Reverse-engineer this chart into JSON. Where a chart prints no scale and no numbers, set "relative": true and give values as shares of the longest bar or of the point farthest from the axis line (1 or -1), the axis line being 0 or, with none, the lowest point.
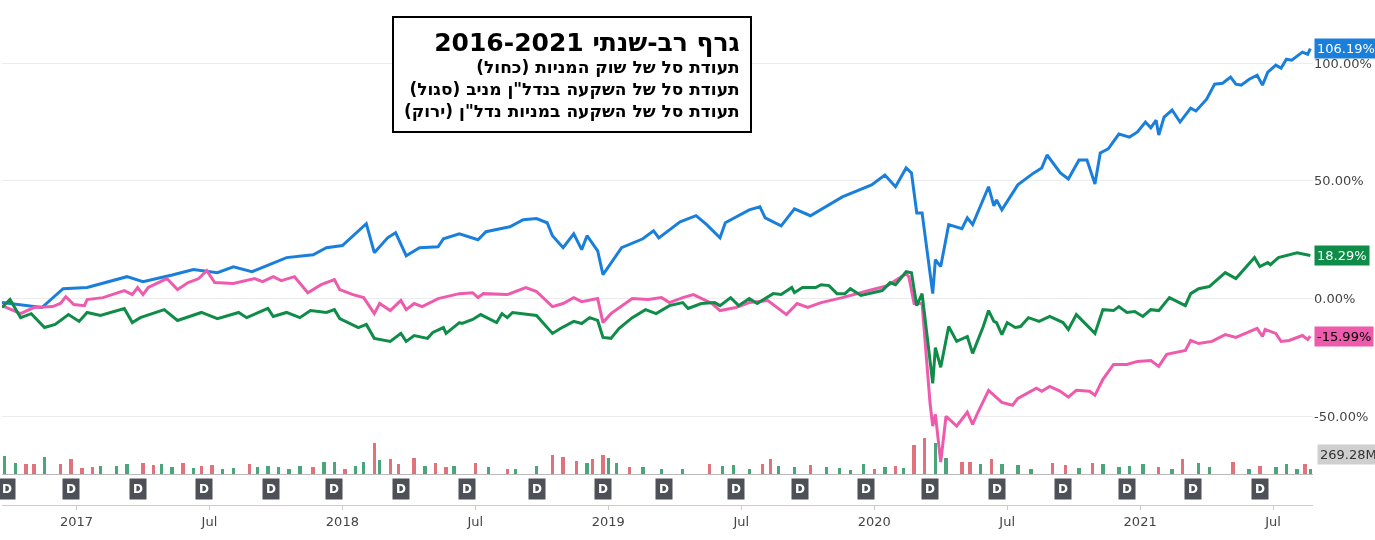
{
  "chart_data": [
    {
      "type": "line",
      "title": "גרף רב-שנתי 2016-2021",
      "subtitle": "תעודת סל של שוק המניות (כחול)\nתעודת סל של השקעה בנדל\"ן מניב (סגול)\nתעודת סל של השקעה במניות נדל\"ן (ירוק)",
      "xlim": [
        2016.72,
        2021.65
      ],
      "ylim": [
        -87.7,
        126
      ],
      "yticks": [
        {
          "value": -50,
          "label": "-50.00%"
        },
        {
          "value": 0,
          "label": "0.00%"
        },
        {
          "value": 50,
          "label": "50.00%"
        },
        {
          "value": 100,
          "label": "100.00%"
        }
      ],
      "grid": "y",
      "tick_labels": "y",
      "series": [
        {
          "color": "#1a7fdb",
          "x": [
            2016.72,
            2016.87,
            2016.95,
            2017.04,
            2017.19,
            2017.25,
            2017.36,
            2017.44,
            2017.53,
            2017.59,
            2017.66,
            2017.79,
            2017.89,
            2017.94,
            2018.0,
            2018.09,
            2018.12,
            2018.17,
            2018.2,
            2018.24,
            2018.29,
            2018.36,
            2018.38,
            2018.44,
            2018.51,
            2018.54,
            2018.63,
            2018.68,
            2018.73,
            2018.77,
            2018.79,
            2018.83,
            2018.87,
            2018.9,
            2018.92,
            2018.96,
            2018.98,
            2019.05,
            2019.13,
            2019.17,
            2019.19,
            2019.27,
            2019.33,
            2019.37,
            2019.42,
            2019.44,
            2019.53,
            2019.57,
            2019.59,
            2019.65,
            2019.7,
            2019.76,
            2019.88,
            2019.99,
            2020.04,
            2020.08,
            2020.12,
            2020.14,
            2020.16,
            2020.18,
            2020.22,
            2020.23,
            2020.25,
            2020.28,
            2020.33,
            2020.35,
            2020.37,
            2020.43,
            2020.45,
            2020.46,
            2020.48,
            2020.54,
            2020.6,
            2020.63,
            2020.65,
            2020.7,
            2020.73,
            2020.77,
            2020.8,
            2020.83,
            2020.85,
            2020.88,
            2020.92,
            2020.96,
            2020.99,
            2021.02,
            2021.04,
            2021.06,
            2021.07,
            2021.09,
            2021.12,
            2021.15,
            2021.19,
            2021.21,
            2021.25,
            2021.28,
            2021.31,
            2021.34,
            2021.36,
            2021.38,
            2021.41,
            2021.44,
            2021.46,
            2021.48,
            2021.51,
            2021.53,
            2021.55,
            2021.57,
            2021.61,
            2021.63,
            2021.64
          ],
          "values": [
            -1.7,
            -3.8,
            4.2,
            4.7,
            9.3,
            7.2,
            10,
            12.3,
            11,
            13.5,
            11.4,
            17.4,
            18.6,
            21.6,
            22.5,
            31.8,
            19.5,
            25.8,
            28,
            18.2,
            21.6,
            22,
            25.4,
            27.5,
            25,
            28.4,
            30.5,
            33.5,
            34,
            32.2,
            26.7,
            21.6,
            27.5,
            20.8,
            26.7,
            20.3,
            10.2,
            21.6,
            25.4,
            28.8,
            25.8,
            32.6,
            35.2,
            31.4,
            25.8,
            32.2,
            37.7,
            39,
            34.3,
            30.9,
            38.1,
            35.2,
            43.2,
            48.3,
            52.5,
            47.5,
            55.5,
            53.4,
            36.4,
            36.4,
            2.1,
            16.5,
            13.6,
            31.4,
            29.7,
            34.3,
            31.4,
            47.5,
            39.4,
            41.9,
            37.7,
            48.3,
            53.4,
            55.5,
            61,
            53.4,
            50.8,
            58.9,
            58.9,
            48.7,
            61.9,
            63.6,
            69.9,
            68.6,
            70.8,
            75,
            72.5,
            75.8,
            69.5,
            77.1,
            80.1,
            75,
            80.9,
            79.7,
            84.7,
            91.1,
            91.5,
            94.1,
            91.1,
            90.7,
            93.2,
            94.9,
            90.7,
            96.2,
            99.2,
            97.9,
            101.7,
            101.3,
            104.7,
            103.8,
            106.19
          ]
        },
        {
          "color": "#ee5bad",
          "x": [
            2016.72,
            2016.79,
            2016.84,
            2016.91,
            2016.94,
            2016.96,
            2016.99,
            2017.03,
            2017.04,
            2017.1,
            2017.18,
            2017.21,
            2017.23,
            2017.25,
            2017.27,
            2017.34,
            2017.38,
            2017.42,
            2017.46,
            2017.49,
            2017.52,
            2017.59,
            2017.67,
            2017.7,
            2017.74,
            2017.77,
            2017.82,
            2017.87,
            2017.92,
            2017.97,
            2017.99,
            2018.04,
            2018.08,
            2018.12,
            2018.14,
            2018.18,
            2018.22,
            2018.24,
            2018.27,
            2018.3,
            2018.36,
            2018.44,
            2018.49,
            2018.51,
            2018.53,
            2018.62,
            2018.69,
            2018.73,
            2018.79,
            2018.83,
            2018.87,
            2018.9,
            2018.96,
            2018.98,
            2019.01,
            2019.09,
            2019.15,
            2019.2,
            2019.23,
            2019.28,
            2019.32,
            2019.39,
            2019.42,
            2019.48,
            2019.53,
            2019.6,
            2019.67,
            2019.71,
            2019.75,
            2019.8,
            2019.88,
            2019.98,
            2020.05,
            2020.12,
            2020.13,
            2020.15,
            2020.18,
            2020.21,
            2020.22,
            2020.23,
            2020.25,
            2020.27,
            2020.31,
            2020.35,
            2020.37,
            2020.39,
            2020.43,
            2020.48,
            2020.52,
            2020.54,
            2020.61,
            2020.63,
            2020.66,
            2020.7,
            2020.73,
            2020.76,
            2020.81,
            2020.83,
            2020.86,
            2020.9,
            2020.95,
            2020.99,
            2021.04,
            2021.07,
            2021.1,
            2021.17,
            2021.19,
            2021.22,
            2021.27,
            2021.32,
            2021.36,
            2021.44,
            2021.46,
            2021.47,
            2021.51,
            2021.53,
            2021.56,
            2021.61,
            2021.63,
            2021.64
          ],
          "values": [
            -3,
            -6.4,
            -3.8,
            -3.4,
            -2.1,
            0.8,
            -2.5,
            -3,
            -0.4,
            0.4,
            3.4,
            1.7,
            4.7,
            1.7,
            4.7,
            8.5,
            3.8,
            6.8,
            8.5,
            11.9,
            6.8,
            6.4,
            8.5,
            7.2,
            9.3,
            7.6,
            9.3,
            2.5,
            5.9,
            8.1,
            3.8,
            1.7,
            0.4,
            -6.4,
            -2.1,
            -5.1,
            -0.8,
            -4.7,
            -2.1,
            -3.4,
            0,
            2.1,
            2.5,
            0.4,
            2.1,
            1.7,
            4.7,
            3,
            -3.4,
            -2.1,
            0.4,
            -1.3,
            0,
            -10.2,
            -6.4,
            0,
            -0.4,
            0.4,
            -1.7,
            0.4,
            1.7,
            -2.1,
            -5.1,
            -3.8,
            -1.7,
            -0.8,
            -6.8,
            -2.1,
            -3.8,
            -1.7,
            0.4,
            3.4,
            5.5,
            10.6,
            9.3,
            -2.1,
            -2.1,
            -44.5,
            -54.2,
            -49.2,
            -69.5,
            -50,
            -54.2,
            -48.3,
            -53.4,
            -48.3,
            -39,
            -44.1,
            -45.3,
            -42.4,
            -38.1,
            -39.4,
            -37.3,
            -39.4,
            -41.9,
            -39,
            -39.4,
            -41.1,
            -34.3,
            -28,
            -28,
            -26.7,
            -26.3,
            -28.8,
            -23.7,
            -22,
            -17.8,
            -19.1,
            -18.2,
            -15.3,
            -16.5,
            -12.7,
            -16.1,
            -13.1,
            -14.8,
            -18.2,
            -17.8,
            -15.7,
            -17.4,
            -15.99
          ]
        },
        {
          "color": "#0e8c48",
          "x": [
            2016.72,
            2016.75,
            2016.79,
            2016.83,
            2016.88,
            2016.92,
            2016.97,
            2017.01,
            2017.04,
            2017.09,
            2017.18,
            2017.21,
            2017.24,
            2017.33,
            2017.38,
            2017.47,
            2017.53,
            2017.61,
            2017.64,
            2017.72,
            2017.74,
            2017.79,
            2017.84,
            2017.88,
            2017.94,
            2017.97,
            2017.99,
            2018.06,
            2018.09,
            2018.12,
            2018.18,
            2018.22,
            2018.24,
            2018.27,
            2018.32,
            2018.34,
            2018.38,
            2018.39,
            2018.44,
            2018.45,
            2018.49,
            2018.52,
            2018.58,
            2018.6,
            2018.62,
            2018.64,
            2018.73,
            2018.79,
            2018.82,
            2018.87,
            2018.9,
            2018.93,
            2018.96,
            2018.98,
            2019.01,
            2019.04,
            2019.09,
            2019.14,
            2019.18,
            2019.23,
            2019.28,
            2019.3,
            2019.35,
            2019.4,
            2019.42,
            2019.46,
            2019.49,
            2019.53,
            2019.56,
            2019.62,
            2019.65,
            2019.69,
            2019.7,
            2019.73,
            2019.78,
            2019.8,
            2019.83,
            2019.86,
            2019.89,
            2019.91,
            2019.95,
            2020.03,
            2020.06,
            2020.08,
            2020.12,
            2020.14,
            2020.16,
            2020.18,
            2020.22,
            2020.23,
            2020.25,
            2020.28,
            2020.31,
            2020.35,
            2020.37,
            2020.41,
            2020.43,
            2020.45,
            2020.46,
            2020.48,
            2020.5,
            2020.53,
            2020.55,
            2020.58,
            2020.62,
            2020.66,
            2020.71,
            2020.73,
            2020.76,
            2020.79,
            2020.83,
            2020.86,
            2020.9,
            2020.92,
            2020.95,
            2020.98,
            2021.01,
            2021.04,
            2021.07,
            2021.11,
            2021.17,
            2021.19,
            2021.22,
            2021.26,
            2021.32,
            2021.36,
            2021.43,
            2021.45,
            2021.48,
            2021.49,
            2021.52,
            2021.59,
            2021.64
          ],
          "values": [
            -3.8,
            -0.4,
            -8.1,
            -6.4,
            -12.3,
            -11,
            -6.8,
            -9.7,
            -5.9,
            -7.2,
            -4.2,
            -10.2,
            -8.1,
            -4.7,
            -9.3,
            -5.9,
            -8.5,
            -5.9,
            -8.1,
            -4.2,
            -7.6,
            -5.9,
            -8.1,
            -5.1,
            -5.9,
            -4.7,
            -8.5,
            -12.3,
            -11,
            -16.9,
            -18.2,
            -14.8,
            -18.2,
            -15.7,
            -16.9,
            -14.4,
            -12.3,
            -14.8,
            -10.2,
            -10.6,
            -8.9,
            -6.8,
            -10.2,
            -6.4,
            -8.1,
            -5.9,
            -7.2,
            -14.8,
            -12.7,
            -9.7,
            -10.6,
            -8.1,
            -9.3,
            -16.5,
            -16.9,
            -12.7,
            -8.1,
            -4.7,
            -6.4,
            -3,
            -1.7,
            -4.2,
            -2.1,
            -1.7,
            -3,
            0.4,
            -3,
            0,
            -2.1,
            2.1,
            1.7,
            4.7,
            2.5,
            4.7,
            4.7,
            5.9,
            5.5,
            2.1,
            2.1,
            4.2,
            1.3,
            3.4,
            6.8,
            5.9,
            11.4,
            11,
            -3,
            2.1,
            -36,
            -20.8,
            -29.2,
            -11.9,
            -18.2,
            -16.1,
            -23.3,
            -11.9,
            -5.1,
            -9.7,
            -10.2,
            -15.3,
            -10.2,
            -12.3,
            -11.9,
            -8.1,
            -9.7,
            -7.6,
            -10.2,
            -13.1,
            -6.8,
            -10.2,
            -14.8,
            -4.7,
            -5.1,
            -3.4,
            -5.9,
            -5.5,
            -7.6,
            -4.7,
            -5.1,
            0.4,
            -3,
            2.1,
            4.2,
            5.1,
            11,
            8.5,
            17.4,
            13.6,
            15.3,
            14.4,
            17.4,
            19.5,
            18.29
          ]
        }
      ],
      "annotations": [
        {
          "text": "106.19%",
          "x": 2021.64,
          "y": 106.19
        },
        {
          "text": "-15.99%",
          "x": 2021.64,
          "y": -15.99
        },
        {
          "text": "18.29%",
          "x": 2021.64,
          "y": 18.29
        },
        {
          "text": "D",
          "x": 2016.74
        },
        {
          "text": "D",
          "x": 2016.98
        },
        {
          "text": "D",
          "x": 2017.23
        },
        {
          "text": "D",
          "x": 2017.48
        },
        {
          "text": "D",
          "x": 2017.73
        },
        {
          "text": "D",
          "x": 2017.97
        },
        {
          "text": "D",
          "x": 2018.22
        },
        {
          "text": "D",
          "x": 2018.47
        },
        {
          "text": "D",
          "x": 2018.73
        },
        {
          "text": "D",
          "x": 2018.98
        },
        {
          "text": "D",
          "x": 2019.21
        },
        {
          "text": "D",
          "x": 2019.48
        },
        {
          "text": "D",
          "x": 2019.72
        },
        {
          "text": "D",
          "x": 2019.97
        },
        {
          "text": "D",
          "x": 2020.21
        },
        {
          "text": "D",
          "x": 2020.46
        },
        {
          "text": "D",
          "x": 2020.71
        },
        {
          "text": "D",
          "x": 2020.95
        },
        {
          "text": "D",
          "x": 2021.2
        },
        {
          "text": "D",
          "x": 2021.45
        }
      ]
    },
    {
      "type": "bar",
      "relative": true,
      "tick_labels": "x",
      "xlim": [
        2016.72,
        2021.65
      ],
      "xticks": [
        2017,
        {
          "value": 2017.5,
          "label": "Jul"
        },
        2018,
        {
          "value": 2018.5,
          "label": "Jul"
        },
        2019,
        {
          "value": 2019.5,
          "label": "Jul"
        },
        2020,
        {
          "value": 2020.5,
          "label": "Jul"
        },
        2021,
        {
          "value": 2021.5,
          "label": "Jul"
        }
      ],
      "x": [
        2016.73,
        2016.77,
        2016.81,
        2016.84,
        2016.88,
        2016.94,
        2016.98,
        2017.02,
        2017.06,
        2017.09,
        2017.15,
        2017.19,
        2017.25,
        2017.29,
        2017.32,
        2017.36,
        2017.4,
        2017.44,
        2017.47,
        2017.51,
        2017.55,
        2017.59,
        2017.65,
        2017.68,
        2017.72,
        2017.76,
        2017.8,
        2017.84,
        2017.89,
        2017.93,
        2017.97,
        2018.01,
        2018.05,
        2018.08,
        2018.12,
        2018.14,
        2018.18,
        2018.21,
        2018.27,
        2018.31,
        2018.35,
        2018.39,
        2018.42,
        2018.5,
        2018.55,
        2018.62,
        2018.65,
        2018.73,
        2018.79,
        2018.83,
        2018.88,
        2018.92,
        2018.94,
        2018.98,
        2019.0,
        2019.03,
        2019.08,
        2019.13,
        2019.2,
        2019.28,
        2019.38,
        2019.43,
        2019.47,
        2019.53,
        2019.58,
        2019.61,
        2019.64,
        2019.7,
        2019.76,
        2019.82,
        2019.87,
        2019.91,
        2019.96,
        2020.0,
        2020.04,
        2020.08,
        2020.11,
        2020.15,
        2020.19,
        2020.23,
        2020.27,
        2020.33,
        2020.36,
        2020.4,
        2020.44,
        2020.48,
        2020.54,
        2020.59,
        2020.67,
        2020.72,
        2020.77,
        2020.82,
        2020.86,
        2020.92,
        2020.96,
        2021.01,
        2021.07,
        2021.12,
        2021.16,
        2021.22,
        2021.26,
        2021.35,
        2021.41,
        2021.45,
        2021.51,
        2021.55,
        2021.59,
        2021.62,
        2021.64
      ],
      "values": [
        0.49,
        0.32,
        0.28,
        0.28,
        0.47,
        0.27,
        0.41,
        0.17,
        0.2,
        0.23,
        0.23,
        0.28,
        0.31,
        0.25,
        0.28,
        0.2,
        0.32,
        0.17,
        0.23,
        0.25,
        0.16,
        0.17,
        0.28,
        0.2,
        0.23,
        0.21,
        0.16,
        0.24,
        0.21,
        0.33,
        0.34,
        0.15,
        0.22,
        0.33,
        0.86,
        0.39,
        0.41,
        0.28,
        0.45,
        0.23,
        0.3,
        0.2,
        0.22,
        0.32,
        0.2,
        0.15,
        0.16,
        0.24,
        0.54,
        0.48,
        0.37,
        0.3,
        0.41,
        0.53,
        0.45,
        0.3,
        0.19,
        0.19,
        0.16,
        0.15,
        0.28,
        0.24,
        0.25,
        0.15,
        0.28,
        0.41,
        0.23,
        0.2,
        0.26,
        0.19,
        0.17,
        0.11,
        0.28,
        0.15,
        0.2,
        0.24,
        0.17,
        0.8,
        1.0,
        0.86,
        0.46,
        0.33,
        0.35,
        0.27,
        0.41,
        0.29,
        0.25,
        0.16,
        0.31,
        0.25,
        0.18,
        0.31,
        0.28,
        0.19,
        0.24,
        0.27,
        0.21,
        0.16,
        0.41,
        0.31,
        0.21,
        0.33,
        0.16,
        0.24,
        0.19,
        0.27,
        0.16,
        0.27,
        0.16
      ],
      "colors": [
        "#4aa57a",
        "#4aa57a",
        "#e0727c",
        "#e0727c",
        "#4aa57a",
        "#e0727c",
        "#e0727c",
        "#e0727c",
        "#e0727c",
        "#4aa57a",
        "#4aa57a",
        "#4aa57a",
        "#e0727c",
        "#e0727c",
        "#4aa57a",
        "#4aa57a",
        "#e0727c",
        "#4aa57a",
        "#e0727c",
        "#e0727c",
        "#4aa57a",
        "#4aa57a",
        "#e0727c",
        "#4aa57a",
        "#4aa57a",
        "#4aa57a",
        "#4aa57a",
        "#4aa57a",
        "#e0727c",
        "#4aa57a",
        "#4aa57a",
        "#e0727c",
        "#4aa57a",
        "#4aa57a",
        "#e0727c",
        "#4aa57a",
        "#e0727c",
        "#e0727c",
        "#e0727c",
        "#4aa57a",
        "#e0727c",
        "#e0727c",
        "#4aa57a",
        "#e0727c",
        "#4aa57a",
        "#e0727c",
        "#4aa57a",
        "#4aa57a",
        "#e0727c",
        "#e0727c",
        "#e0727c",
        "#4aa57a",
        "#e0727c",
        "#e0727c",
        "#4aa57a",
        "#4aa57a",
        "#e0727c",
        "#4aa57a",
        "#4aa57a",
        "#4aa57a",
        "#e0727c",
        "#4aa57a",
        "#4aa57a",
        "#4aa57a",
        "#e0727c",
        "#e0727c",
        "#4aa57a",
        "#4aa57a",
        "#e0727c",
        "#4aa57a",
        "#4aa57a",
        "#4aa57a",
        "#4aa57a",
        "#e0727c",
        "#4aa57a",
        "#e0727c",
        "#4aa57a",
        "#e0727c",
        "#e0727c",
        "#4aa57a",
        "#4aa57a",
        "#e0727c",
        "#e0727c",
        "#4aa57a",
        "#e0727c",
        "#4aa57a",
        "#4aa57a",
        "#4aa57a",
        "#e0727c",
        "#e0727c",
        "#4aa57a",
        "#e0727c",
        "#4aa57a",
        "#4aa57a",
        "#4aa57a",
        "#4aa57a",
        "#e0727c",
        "#4aa57a",
        "#e0727c",
        "#4aa57a",
        "#4aa57a",
        "#e0727c",
        "#4aa57a",
        "#e0727c",
        "#4aa57a",
        "#4aa57a",
        "#4aa57a",
        "#e0727c",
        "#4aa57a"
      ],
      "annotations": [
        "269.28M"
      ]
    }
  ]
}
